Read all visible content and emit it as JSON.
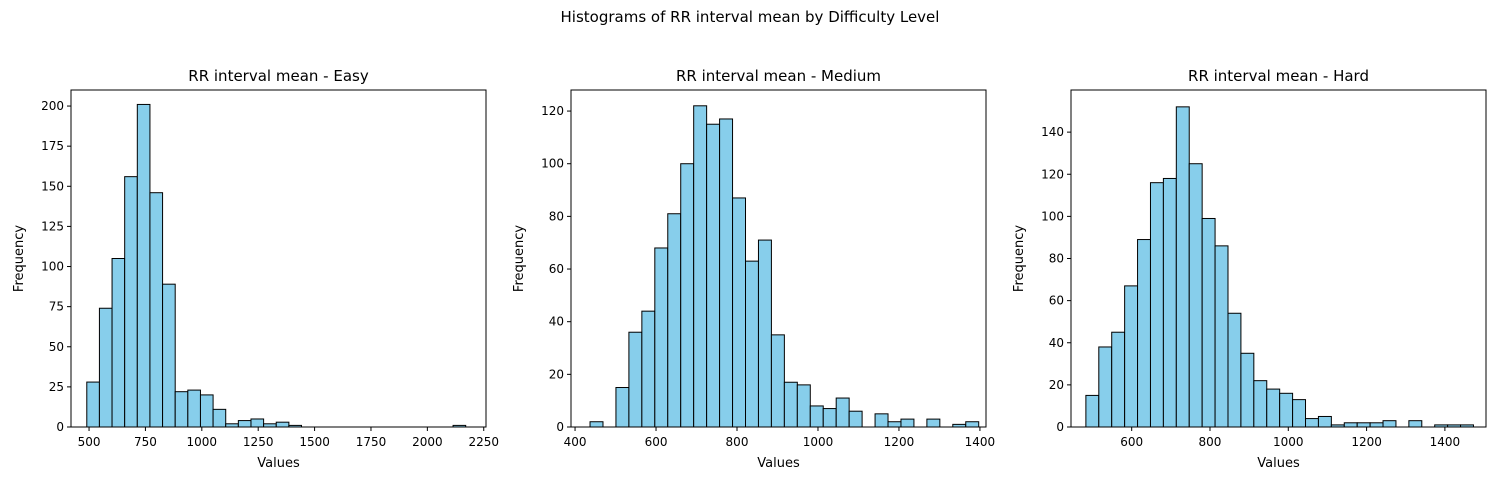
{
  "figure": {
    "suptitle": "Histograms of RR interval mean by Difficulty Level"
  },
  "colors": {
    "bar_fill": "#87ceeb",
    "bar_edge": "#000000",
    "axis": "#000000",
    "background": "#ffffff"
  },
  "chart_data": [
    {
      "type": "bar",
      "title": "RR interval mean - Easy",
      "xlabel": "Values",
      "ylabel": "Frequency",
      "xlim": [
        420,
        2260
      ],
      "ylim": [
        0,
        210
      ],
      "xticks": [
        500,
        750,
        1000,
        1250,
        1500,
        1750,
        2000,
        2250
      ],
      "yticks": [
        0,
        25,
        50,
        75,
        100,
        125,
        150,
        175,
        200
      ],
      "bin_start": 490,
      "bin_width": 56,
      "values": [
        28,
        74,
        105,
        156,
        201,
        146,
        89,
        22,
        23,
        20,
        11,
        2,
        4,
        5,
        2,
        3,
        1,
        0,
        0,
        0,
        0,
        0,
        0,
        0,
        0,
        0,
        0,
        0,
        0,
        1
      ],
      "grid": false
    },
    {
      "type": "bar",
      "title": "RR interval mean - Medium",
      "xlabel": "Values",
      "ylabel": "Frequency",
      "xlim": [
        390,
        1415
      ],
      "ylim": [
        0,
        128
      ],
      "xticks": [
        400,
        600,
        800,
        1000,
        1200,
        1400
      ],
      "yticks": [
        0,
        20,
        40,
        60,
        80,
        100,
        120
      ],
      "bin_start": 437,
      "bin_width": 32,
      "values": [
        2,
        0,
        15,
        36,
        44,
        68,
        81,
        100,
        122,
        115,
        117,
        87,
        63,
        71,
        35,
        17,
        16,
        8,
        7,
        11,
        6,
        0,
        5,
        2,
        3,
        0,
        3,
        0,
        1,
        2
      ],
      "grid": false
    },
    {
      "type": "bar",
      "title": "RR interval mean - Hard",
      "xlabel": "Values",
      "ylabel": "Frequency",
      "xlim": [
        445,
        1505
      ],
      "ylim": [
        0,
        160
      ],
      "xticks": [
        600,
        800,
        1000,
        1200,
        1400
      ],
      "yticks": [
        0,
        20,
        40,
        60,
        80,
        100,
        120,
        140
      ],
      "bin_start": 483,
      "bin_width": 33,
      "values": [
        15,
        38,
        45,
        67,
        89,
        116,
        118,
        152,
        125,
        99,
        86,
        54,
        35,
        22,
        18,
        16,
        13,
        4,
        5,
        1,
        2,
        2,
        2,
        3,
        0,
        3,
        0,
        1,
        1,
        1
      ],
      "grid": false
    }
  ]
}
